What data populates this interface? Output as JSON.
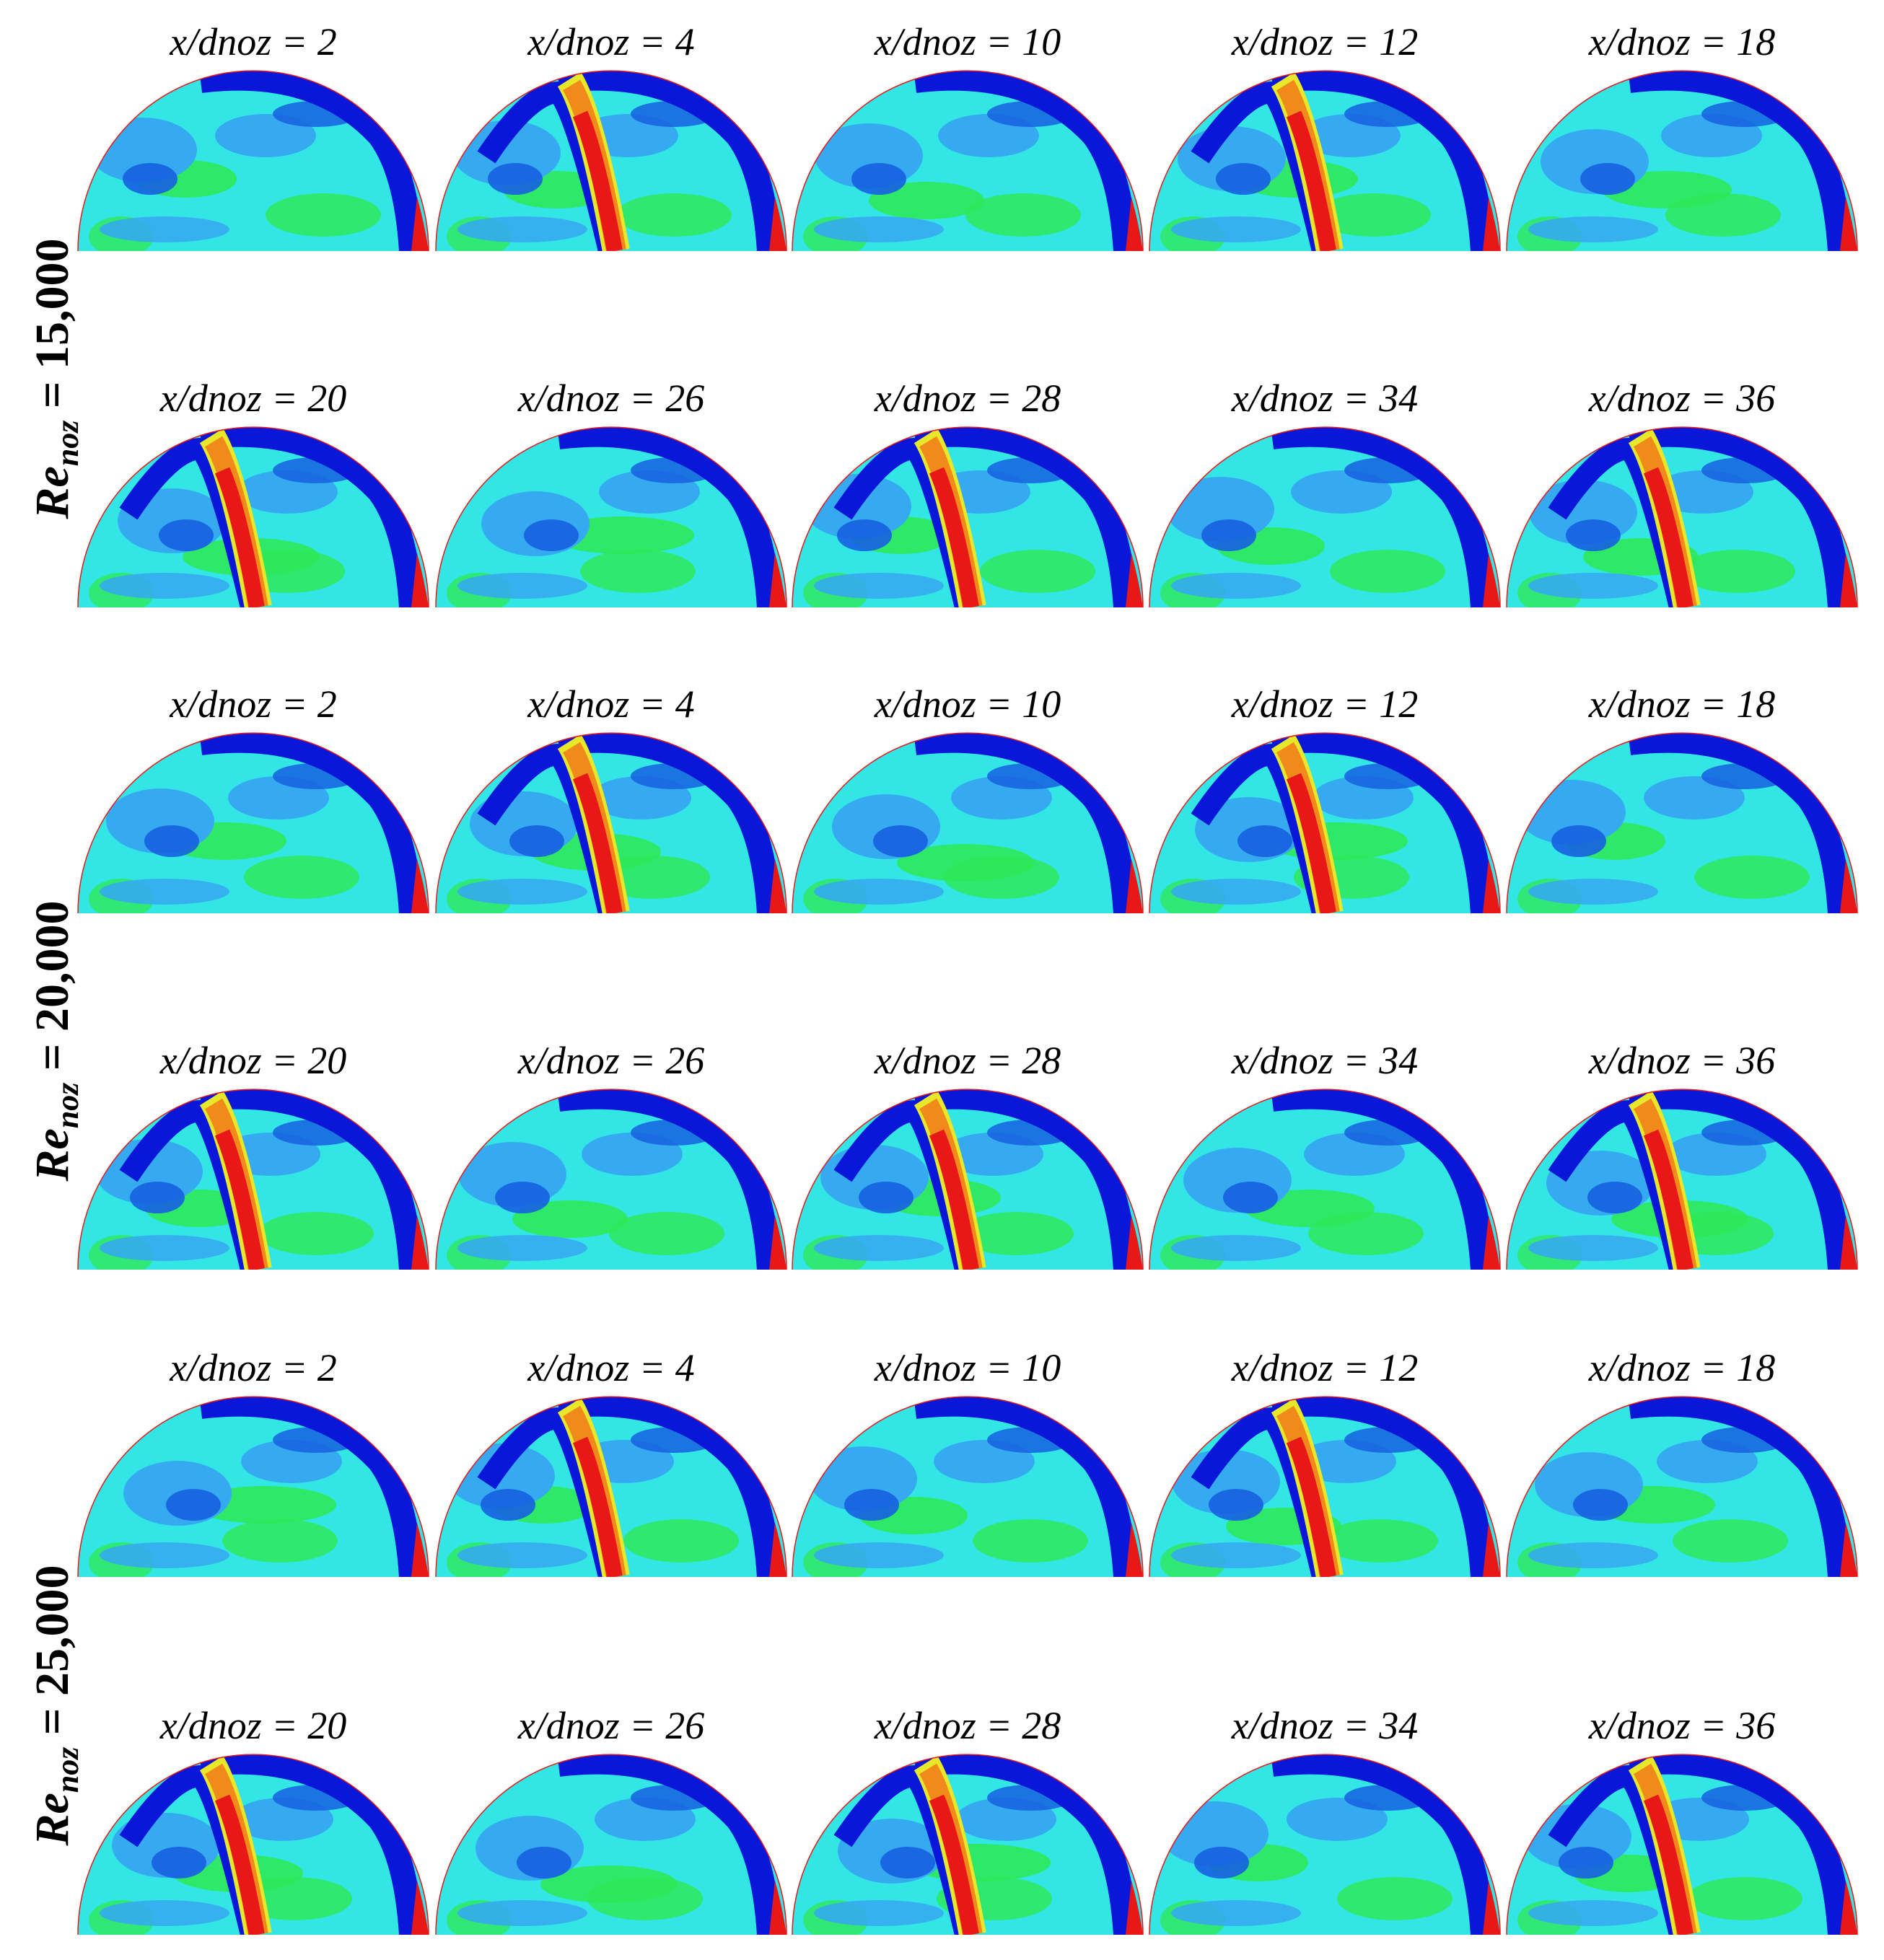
{
  "figure": {
    "groups": [
      {
        "re_label": {
          "base": "Re",
          "sub": "noz",
          "tail": " = 15,000"
        },
        "rows": [
          {
            "labels": [
              "x/dnoz = 2",
              "x/dnoz = 4",
              "x/dnoz = 10",
              "x/dnoz = 12",
              "x/dnoz = 18"
            ],
            "jet_visible": [
              false,
              true,
              false,
              true,
              false
            ]
          },
          {
            "labels": [
              "x/dnoz = 20",
              "x/dnoz = 26",
              "x/dnoz = 28",
              "x/dnoz = 34",
              "x/dnoz = 36"
            ],
            "jet_visible": [
              true,
              false,
              true,
              false,
              true
            ]
          }
        ]
      },
      {
        "re_label": {
          "base": "Re",
          "sub": "noz",
          "tail": " = 20,000"
        },
        "rows": [
          {
            "labels": [
              "x/dnoz = 2",
              "x/dnoz = 4",
              "x/dnoz = 10",
              "x/dnoz = 12",
              "x/dnoz = 18"
            ],
            "jet_visible": [
              false,
              true,
              false,
              true,
              false
            ]
          },
          {
            "labels": [
              "x/dnoz = 20",
              "x/dnoz = 26",
              "x/dnoz = 28",
              "x/dnoz = 34",
              "x/dnoz = 36"
            ],
            "jet_visible": [
              true,
              false,
              true,
              false,
              true
            ]
          }
        ]
      },
      {
        "re_label": {
          "base": "Re",
          "sub": "noz",
          "tail": " = 25,000"
        },
        "rows": [
          {
            "labels": [
              "x/dnoz = 2",
              "x/dnoz = 4",
              "x/dnoz = 10",
              "x/dnoz = 12",
              "x/dnoz = 18"
            ],
            "jet_visible": [
              false,
              true,
              false,
              true,
              false
            ]
          },
          {
            "labels": [
              "x/dnoz = 20",
              "x/dnoz = 26",
              "x/dnoz = 28",
              "x/dnoz = 34",
              "x/dnoz = 36"
            ],
            "jet_visible": [
              true,
              false,
              true,
              false,
              true
            ]
          }
        ]
      }
    ],
    "colors": {
      "background": "#33e6e6",
      "green": "#2ee85a",
      "light_blue": "#36aaf0",
      "mid_blue": "#1660e0",
      "dark_blue": "#0a16d8",
      "yellow": "#e8e82a",
      "orange": "#f08a1a",
      "red": "#e81818"
    }
  }
}
